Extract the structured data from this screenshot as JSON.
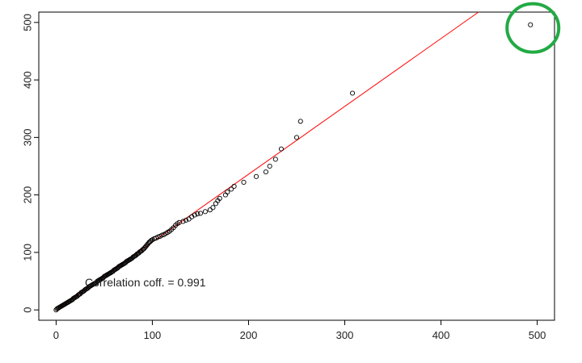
{
  "chart_data": {
    "type": "scatter",
    "title": "",
    "xlabel": "",
    "ylabel": "",
    "xlim": [
      -18,
      518
    ],
    "ylim": [
      -18,
      518
    ],
    "x_ticks": [
      0,
      100,
      200,
      300,
      400,
      500
    ],
    "y_ticks": [
      0,
      100,
      200,
      300,
      400,
      500
    ],
    "grid": false,
    "annotation": "Correlation coff. = 0.991",
    "reference_line": {
      "slope": 1.18,
      "intercept": 0,
      "color": "#ff0000"
    },
    "highlight": {
      "x": 493,
      "y": 496,
      "color": "#22aa44"
    },
    "points": [
      [
        0,
        0
      ],
      [
        1,
        2
      ],
      [
        2,
        3
      ],
      [
        3,
        4
      ],
      [
        4,
        5
      ],
      [
        5,
        6
      ],
      [
        6,
        7
      ],
      [
        7,
        8
      ],
      [
        8,
        9
      ],
      [
        9,
        10
      ],
      [
        10,
        11
      ],
      [
        11,
        12
      ],
      [
        12,
        13
      ],
      [
        13,
        14
      ],
      [
        14,
        15
      ],
      [
        15,
        16
      ],
      [
        16,
        17
      ],
      [
        17,
        18
      ],
      [
        18,
        20
      ],
      [
        19,
        21
      ],
      [
        20,
        22
      ],
      [
        21,
        23
      ],
      [
        22,
        24
      ],
      [
        23,
        26
      ],
      [
        24,
        27
      ],
      [
        25,
        28
      ],
      [
        26,
        30
      ],
      [
        27,
        31
      ],
      [
        28,
        32
      ],
      [
        29,
        33
      ],
      [
        30,
        35
      ],
      [
        31,
        36
      ],
      [
        32,
        37
      ],
      [
        33,
        38
      ],
      [
        34,
        40
      ],
      [
        35,
        41
      ],
      [
        36,
        42
      ],
      [
        37,
        43
      ],
      [
        38,
        44
      ],
      [
        39,
        45
      ],
      [
        40,
        46
      ],
      [
        41,
        47
      ],
      [
        42,
        48
      ],
      [
        43,
        50
      ],
      [
        44,
        51
      ],
      [
        45,
        52
      ],
      [
        46,
        53
      ],
      [
        47,
        54
      ],
      [
        48,
        55
      ],
      [
        49,
        56
      ],
      [
        50,
        58
      ],
      [
        51,
        59
      ],
      [
        52,
        60
      ],
      [
        53,
        61
      ],
      [
        54,
        62
      ],
      [
        55,
        63
      ],
      [
        56,
        64
      ],
      [
        57,
        65
      ],
      [
        58,
        66
      ],
      [
        59,
        67
      ],
      [
        60,
        69
      ],
      [
        61,
        70
      ],
      [
        62,
        71
      ],
      [
        63,
        72
      ],
      [
        64,
        73
      ],
      [
        65,
        75
      ],
      [
        66,
        76
      ],
      [
        67,
        77
      ],
      [
        68,
        78
      ],
      [
        69,
        79
      ],
      [
        70,
        80
      ],
      [
        71,
        81
      ],
      [
        72,
        82
      ],
      [
        73,
        84
      ],
      [
        74,
        85
      ],
      [
        75,
        86
      ],
      [
        76,
        87
      ],
      [
        77,
        88
      ],
      [
        78,
        89
      ],
      [
        79,
        90
      ],
      [
        80,
        92
      ],
      [
        81,
        93
      ],
      [
        82,
        94
      ],
      [
        83,
        95
      ],
      [
        84,
        97
      ],
      [
        85,
        98
      ],
      [
        86,
        99
      ],
      [
        87,
        101
      ],
      [
        88,
        102
      ],
      [
        89,
        103
      ],
      [
        90,
        105
      ],
      [
        91,
        106
      ],
      [
        92,
        108
      ],
      [
        93,
        110
      ],
      [
        94,
        112
      ],
      [
        95,
        114
      ],
      [
        96,
        116
      ],
      [
        97,
        118
      ],
      [
        98,
        119
      ],
      [
        99,
        121
      ],
      [
        100,
        122
      ],
      [
        102,
        124
      ],
      [
        104,
        125
      ],
      [
        106,
        127
      ],
      [
        108,
        128
      ],
      [
        110,
        130
      ],
      [
        112,
        131
      ],
      [
        114,
        133
      ],
      [
        116,
        135
      ],
      [
        118,
        137
      ],
      [
        120,
        140
      ],
      [
        122,
        143
      ],
      [
        124,
        147
      ],
      [
        126,
        150
      ],
      [
        128,
        152
      ],
      [
        132,
        154
      ],
      [
        135,
        156
      ],
      [
        138,
        158
      ],
      [
        141,
        162
      ],
      [
        144,
        165
      ],
      [
        147,
        167
      ],
      [
        150,
        168
      ],
      [
        155,
        171
      ],
      [
        160,
        174
      ],
      [
        163,
        178
      ],
      [
        166,
        185
      ],
      [
        168,
        190
      ],
      [
        170,
        194
      ],
      [
        176,
        200
      ],
      [
        178,
        205
      ],
      [
        182,
        210
      ],
      [
        185,
        215
      ],
      [
        195,
        222
      ],
      [
        208,
        232
      ],
      [
        218,
        240
      ],
      [
        222,
        250
      ],
      [
        228,
        262
      ],
      [
        234,
        280
      ],
      [
        250,
        300
      ],
      [
        254,
        328
      ],
      [
        308,
        377
      ],
      [
        493,
        496
      ]
    ]
  }
}
